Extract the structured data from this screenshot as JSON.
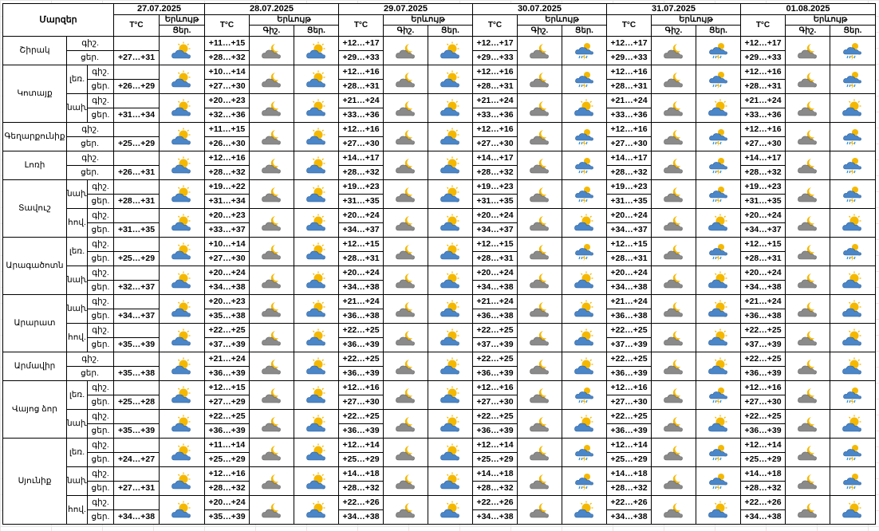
{
  "header": {
    "region_label": "Մարզեր",
    "temp_label": "T°C",
    "phenomena_label": "Երևույթ",
    "night_label": "Գիշ.",
    "day_label": "Ցեր.",
    "dates": [
      "27.07.2025",
      "28.07.2025",
      "29.07.2025",
      "30.07.2025",
      "31.07.2025",
      "01.08.2025"
    ]
  },
  "icon_types": {
    "pc": "partly-cloudy-day",
    "cn": "cloudy-night",
    "rt": "rain-thunder-sun",
    "ps": "partly-cloudy-sunny"
  },
  "regions": [
    {
      "name": "Շիրակ",
      "blocks": [
        {
          "sub": "",
          "night": [
            "",
            "+11…+15",
            "+12…+17",
            "+12…+17",
            "+12…+17",
            "+12…+17"
          ],
          "day": [
            "+27…+31",
            "+28…+32",
            "+29…+33",
            "+29…+33",
            "+29…+33",
            "+29…+33"
          ],
          "icons": [
            [
              "pc"
            ],
            [
              "cn",
              "pc"
            ],
            [
              "cn",
              "pc"
            ],
            [
              "cn",
              "rt"
            ],
            [
              "cn",
              "rt"
            ],
            [
              "cn",
              "rt"
            ]
          ]
        }
      ]
    },
    {
      "name": "Կոտայք",
      "blocks": [
        {
          "sub": "լեռ.",
          "night": [
            "",
            "+10…+14",
            "+12…+16",
            "+12…+16",
            "+12…+16",
            "+12…+16"
          ],
          "day": [
            "+26…+29",
            "+27…+30",
            "+28…+31",
            "+28…+31",
            "+28…+31",
            "+28…+31"
          ],
          "icons": [
            [
              "pc"
            ],
            [
              "cn",
              "pc"
            ],
            [
              "cn",
              "pc"
            ],
            [
              "cn",
              "rt"
            ],
            [
              "cn",
              "rt"
            ],
            [
              "cn",
              "rt"
            ]
          ]
        },
        {
          "sub": "նախ.",
          "night": [
            "",
            "+20…+23",
            "+21…+24",
            "+21…+24",
            "+21…+24",
            "+21…+24"
          ],
          "day": [
            "+31…+34",
            "+32…+36",
            "+33…+36",
            "+33…+36",
            "+33…+36",
            "+33…+36"
          ],
          "icons": [
            [
              "pc"
            ],
            [
              "cn",
              "pc"
            ],
            [
              "cn",
              "pc"
            ],
            [
              "cn",
              "pc"
            ],
            [
              "cn",
              "pc"
            ],
            [
              "cn",
              "pc"
            ]
          ]
        }
      ]
    },
    {
      "name": "Գեղարքունիք",
      "blocks": [
        {
          "sub": "",
          "night": [
            "",
            "+11…+15",
            "+12…+16",
            "+12…+16",
            "+12…+16",
            "+12…+16"
          ],
          "day": [
            "+25…+29",
            "+26…+30",
            "+27…+30",
            "+27…+30",
            "+27…+30",
            "+27…+30"
          ],
          "icons": [
            [
              "pc"
            ],
            [
              "cn",
              "pc"
            ],
            [
              "cn",
              "pc"
            ],
            [
              "cn",
              "rt"
            ],
            [
              "cn",
              "rt"
            ],
            [
              "cn",
              "rt"
            ]
          ]
        }
      ]
    },
    {
      "name": "Լոռի",
      "blocks": [
        {
          "sub": "",
          "night": [
            "",
            "+12…+16",
            "+14…+17",
            "+14…+17",
            "+14…+17",
            "+14…+17"
          ],
          "day": [
            "+26…+31",
            "+28…+32",
            "+28…+32",
            "+28…+32",
            "+28…+32",
            "+28…+32"
          ],
          "icons": [
            [
              "pc"
            ],
            [
              "cn",
              "pc"
            ],
            [
              "cn",
              "pc"
            ],
            [
              "cn",
              "rt"
            ],
            [
              "cn",
              "rt"
            ],
            [
              "cn",
              "rt"
            ]
          ]
        }
      ]
    },
    {
      "name": "Տավուշ",
      "blocks": [
        {
          "sub": "նախ.",
          "night": [
            "",
            "+19…+22",
            "+19…+23",
            "+19…+23",
            "+19…+23",
            "+19…+23"
          ],
          "day": [
            "+28…+31",
            "+31…+34",
            "+31…+35",
            "+31…+35",
            "+31…+35",
            "+31…+35"
          ],
          "icons": [
            [
              "pc"
            ],
            [
              "cn",
              "pc"
            ],
            [
              "cn",
              "pc"
            ],
            [
              "cn",
              "rt"
            ],
            [
              "cn",
              "rt"
            ],
            [
              "cn",
              "rt"
            ]
          ]
        },
        {
          "sub": "հով.",
          "night": [
            "",
            "+20…+23",
            "+20…+24",
            "+20…+24",
            "+20…+24",
            "+20…+24"
          ],
          "day": [
            "+31…+35",
            "+33…+37",
            "+34…+37",
            "+34…+37",
            "+34…+37",
            "+34…+37"
          ],
          "icons": [
            [
              "pc"
            ],
            [
              "cn",
              "pc"
            ],
            [
              "cn",
              "pc"
            ],
            [
              "cn",
              "pc"
            ],
            [
              "cn",
              "pc"
            ],
            [
              "cn",
              "pc"
            ]
          ]
        }
      ]
    },
    {
      "name": "Արագածոտն",
      "blocks": [
        {
          "sub": "լեռ.",
          "night": [
            "",
            "+10…+14",
            "+12…+15",
            "+12…+15",
            "+12…+15",
            "+12…+15"
          ],
          "day": [
            "+25…+29",
            "+27…+30",
            "+28…+31",
            "+28…+31",
            "+28…+31",
            "+28…+31"
          ],
          "icons": [
            [
              "pc"
            ],
            [
              "cn",
              "pc"
            ],
            [
              "cn",
              "pc"
            ],
            [
              "cn",
              "rt"
            ],
            [
              "cn",
              "rt"
            ],
            [
              "cn",
              "rt"
            ]
          ]
        },
        {
          "sub": "նախ.",
          "night": [
            "",
            "+20…+24",
            "+20…+24",
            "+20…+24",
            "+20…+24",
            "+20…+24"
          ],
          "day": [
            "+32…+37",
            "+34…+38",
            "+34…+38",
            "+34…+38",
            "+34…+38",
            "+34…+38"
          ],
          "icons": [
            [
              "pc"
            ],
            [
              "cn",
              "pc"
            ],
            [
              "cn",
              "pc"
            ],
            [
              "cn",
              "pc"
            ],
            [
              "cn",
              "pc"
            ],
            [
              "cn",
              "pc"
            ]
          ]
        }
      ]
    },
    {
      "name": "Արարատ",
      "blocks": [
        {
          "sub": "նախ.",
          "night": [
            "",
            "+20…+23",
            "+21…+24",
            "+21…+24",
            "+21…+24",
            "+21…+24"
          ],
          "day": [
            "+34…+37",
            "+35…+38",
            "+36…+38",
            "+36…+38",
            "+36…+38",
            "+36…+38"
          ],
          "icons": [
            [
              "pc"
            ],
            [
              "cn",
              "pc"
            ],
            [
              "cn",
              "pc"
            ],
            [
              "cn",
              "pc"
            ],
            [
              "cn",
              "pc"
            ],
            [
              "cn",
              "pc"
            ]
          ]
        },
        {
          "sub": "հով.",
          "night": [
            "",
            "+22…+25",
            "+22…+25",
            "+22…+25",
            "+22…+25",
            "+22…+25"
          ],
          "day": [
            "+35…+39",
            "+37…+39",
            "+36…+39",
            "+37…+39",
            "+37…+39",
            "+37…+39"
          ],
          "icons": [
            [
              "pc"
            ],
            [
              "cn",
              "pc"
            ],
            [
              "cn",
              "pc"
            ],
            [
              "cn",
              "pc"
            ],
            [
              "cn",
              "pc"
            ],
            [
              "cn",
              "pc"
            ]
          ]
        }
      ]
    },
    {
      "name": "Արմավիր",
      "blocks": [
        {
          "sub": "",
          "night": [
            "",
            "+21…+24",
            "+22…+25",
            "+22…+25",
            "+22…+25",
            "+22…+25"
          ],
          "day": [
            "+35…+38",
            "+36…+39",
            "+36…+39",
            "+36…+39",
            "+36…+39",
            "+36…+39"
          ],
          "icons": [
            [
              "pc"
            ],
            [
              "cn",
              "pc"
            ],
            [
              "cn",
              "pc"
            ],
            [
              "cn",
              "pc"
            ],
            [
              "cn",
              "pc"
            ],
            [
              "cn",
              "pc"
            ]
          ]
        }
      ]
    },
    {
      "name": "Վայոց ձոր",
      "blocks": [
        {
          "sub": "լեռ.",
          "night": [
            "",
            "+12…+15",
            "+12…+16",
            "+12…+16",
            "+12…+16",
            "+12…+16"
          ],
          "day": [
            "+25…+28",
            "+27…+29",
            "+27…+30",
            "+27…+30",
            "+27…+30",
            "+27…+30"
          ],
          "icons": [
            [
              "pc"
            ],
            [
              "cn",
              "pc"
            ],
            [
              "cn",
              "pc"
            ],
            [
              "cn",
              "rt"
            ],
            [
              "cn",
              "rt"
            ],
            [
              "cn",
              "rt"
            ]
          ]
        },
        {
          "sub": "նախ.",
          "night": [
            "",
            "+22…+25",
            "+22…+25",
            "+22…+25",
            "+22…+25",
            "+22…+25"
          ],
          "day": [
            "+35…+39",
            "+36…+39",
            "+36…+39",
            "+36…+39",
            "+36…+39",
            "+36…+39"
          ],
          "icons": [
            [
              "pc"
            ],
            [
              "cn",
              "pc"
            ],
            [
              "cn",
              "pc"
            ],
            [
              "cn",
              "pc"
            ],
            [
              "cn",
              "pc"
            ],
            [
              "cn",
              "pc"
            ]
          ]
        }
      ]
    },
    {
      "name": "Սյունիք",
      "blocks": [
        {
          "sub": "լեռ.",
          "night": [
            "",
            "+11…+14",
            "+12…+14",
            "+12…+14",
            "+12…+14",
            "+12…+14"
          ],
          "day": [
            "+24…+27",
            "+25…+29",
            "+25…+29",
            "+25…+29",
            "+25…+29",
            "+25…+29"
          ],
          "icons": [
            [
              "pc"
            ],
            [
              "cn",
              "pc"
            ],
            [
              "cn",
              "pc"
            ],
            [
              "cn",
              "rt"
            ],
            [
              "cn",
              "rt"
            ],
            [
              "cn",
              "rt"
            ]
          ]
        },
        {
          "sub": "նախ.",
          "night": [
            "",
            "+12…+16",
            "+14…+18",
            "+14…+18",
            "+14…+18",
            "+14…+18"
          ],
          "day": [
            "+27…+31",
            "+28…+32",
            "+28…+32",
            "+28…+32",
            "+28…+32",
            "+28…+32"
          ],
          "icons": [
            [
              "pc"
            ],
            [
              "cn",
              "pc"
            ],
            [
              "cn",
              "pc"
            ],
            [
              "cn",
              "rt"
            ],
            [
              "cn",
              "rt"
            ],
            [
              "cn",
              "rt"
            ]
          ]
        },
        {
          "sub": "հով.",
          "night": [
            "",
            "+20…+24",
            "+22…+26",
            "+22…+26",
            "+22…+26",
            "+22…+26"
          ],
          "day": [
            "+34…+38",
            "+35…+39",
            "+34…+38",
            "+34…+38",
            "+34…+38",
            "+34…+38"
          ],
          "icons": [
            [
              "pc"
            ],
            [
              "cn",
              "pc"
            ],
            [
              "cn",
              "pc"
            ],
            [
              "cn",
              "pc"
            ],
            [
              "cn",
              "pc"
            ],
            [
              "cn",
              "pc"
            ]
          ]
        }
      ]
    }
  ]
}
